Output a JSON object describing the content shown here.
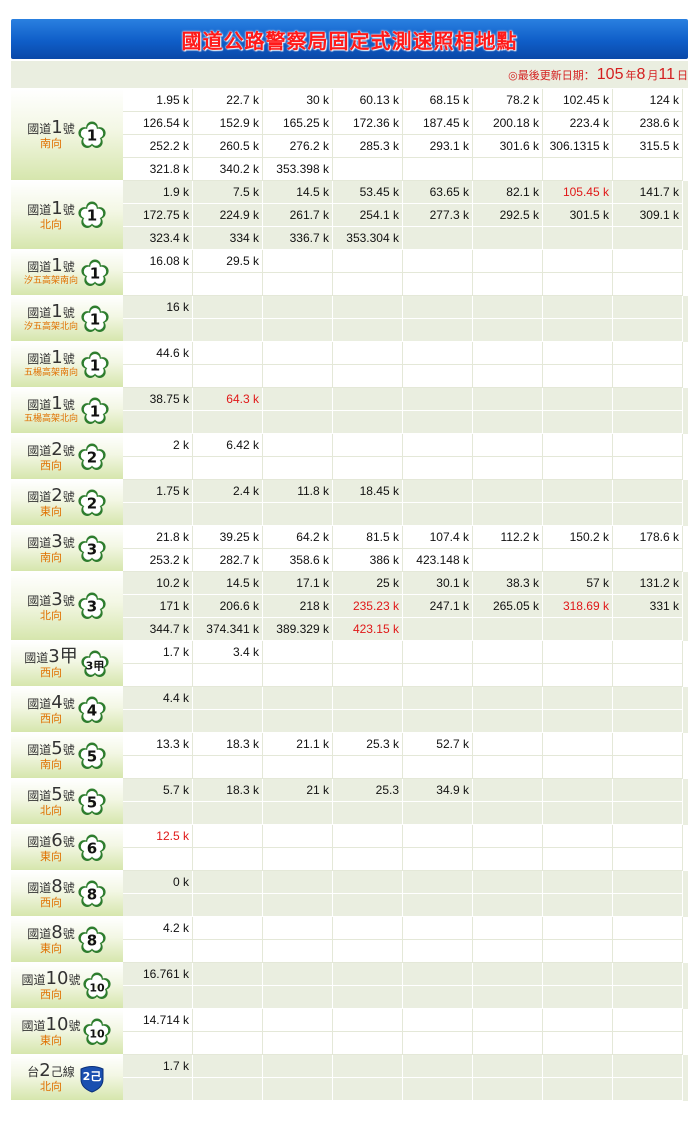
{
  "title": "國道公路警察局固定式測速照相地點",
  "update": {
    "label": "◎最後更新日期：",
    "year": "105",
    "year_unit": "年",
    "month": "8",
    "month_unit": "月",
    "day": "11",
    "day_unit": "日"
  },
  "colors": {
    "red": "#e01818",
    "orange": "#e07000",
    "title_bar": "#0f5ec8",
    "green_row": "#eaeee0"
  },
  "groups": [
    {
      "road_prefix": "國道",
      "road_num": "1",
      "road_suffix": "號",
      "dir": "南向",
      "shield": "1",
      "shield_type": "flower",
      "rows": 4,
      "values": [
        [
          "1.95 k",
          "22.7 k",
          "30 k",
          "60.13 k",
          "68.15 k",
          "78.2 k",
          "102.45 k",
          "124 k"
        ],
        [
          "126.54 k",
          "152.9 k",
          "165.25 k",
          "172.36 k",
          "187.45 k",
          "200.18 k",
          "223.4 k",
          "238.6 k"
        ],
        [
          "252.2 k",
          "260.5 k",
          "276.2 k",
          "285.3 k",
          "293.1 k",
          "301.6 k",
          "306.1315 k",
          "315.5 k"
        ],
        [
          "321.8 k",
          "340.2 k",
          "353.398 k",
          "",
          "",
          "",
          "",
          ""
        ]
      ],
      "red": []
    },
    {
      "road_prefix": "國道",
      "road_num": "1",
      "road_suffix": "號",
      "dir": "北向",
      "shield": "1",
      "shield_type": "flower",
      "rows": 3,
      "values": [
        [
          "1.9 k",
          "7.5 k",
          "14.5 k",
          "53.45 k",
          "63.65 k",
          "82.1 k",
          "105.45 k",
          "141.7 k"
        ],
        [
          "172.75 k",
          "224.9 k",
          "261.7 k",
          "254.1 k",
          "277.3 k",
          "292.5 k",
          "301.5 k",
          "309.1 k"
        ],
        [
          "323.4 k",
          "334 k",
          "336.7 k",
          "353.304 k",
          "",
          "",
          "",
          ""
        ]
      ],
      "red": [
        "0-6"
      ]
    },
    {
      "road_prefix": "國道",
      "road_num": "1",
      "road_suffix": "號",
      "dir": "汐五高架南向",
      "shield": "1",
      "shield_type": "flower",
      "rows": 2,
      "values": [
        [
          "16.08 k",
          "29.5 k",
          "",
          "",
          "",
          "",
          "",
          ""
        ],
        [
          "",
          "",
          "",
          "",
          "",
          "",
          "",
          ""
        ]
      ],
      "red": []
    },
    {
      "road_prefix": "國道",
      "road_num": "1",
      "road_suffix": "號",
      "dir": "汐五高架北向",
      "shield": "1",
      "shield_type": "flower",
      "rows": 2,
      "values": [
        [
          "16 k",
          "",
          "",
          "",
          "",
          "",
          "",
          ""
        ],
        [
          "",
          "",
          "",
          "",
          "",
          "",
          "",
          ""
        ]
      ],
      "red": []
    },
    {
      "road_prefix": "國道",
      "road_num": "1",
      "road_suffix": "號",
      "dir": "五楊高架南向",
      "shield": "1",
      "shield_type": "flower",
      "rows": 2,
      "values": [
        [
          "44.6 k",
          "",
          "",
          "",
          "",
          "",
          "",
          ""
        ],
        [
          "",
          "",
          "",
          "",
          "",
          "",
          "",
          ""
        ]
      ],
      "red": []
    },
    {
      "road_prefix": "國道",
      "road_num": "1",
      "road_suffix": "號",
      "dir": "五楊高架北向",
      "shield": "1",
      "shield_type": "flower",
      "rows": 2,
      "values": [
        [
          "38.75 k",
          "64.3 k",
          "",
          "",
          "",
          "",
          "",
          ""
        ],
        [
          "",
          "",
          "",
          "",
          "",
          "",
          "",
          ""
        ]
      ],
      "red": [
        "0-1"
      ]
    },
    {
      "road_prefix": "國道",
      "road_num": "2",
      "road_suffix": "號",
      "dir": "西向",
      "shield": "2",
      "shield_type": "flower",
      "rows": 2,
      "values": [
        [
          "2 k",
          "6.42 k",
          "",
          "",
          "",
          "",
          "",
          ""
        ],
        [
          "",
          "",
          "",
          "",
          "",
          "",
          "",
          ""
        ]
      ],
      "red": []
    },
    {
      "road_prefix": "國道",
      "road_num": "2",
      "road_suffix": "號",
      "dir": "東向",
      "shield": "2",
      "shield_type": "flower",
      "rows": 2,
      "values": [
        [
          "1.75 k",
          "2.4 k",
          "11.8 k",
          "18.45 k",
          "",
          "",
          "",
          ""
        ],
        [
          "",
          "",
          "",
          "",
          "",
          "",
          "",
          ""
        ]
      ],
      "red": []
    },
    {
      "road_prefix": "國道",
      "road_num": "3",
      "road_suffix": "號",
      "dir": "南向",
      "shield": "3",
      "shield_type": "flower",
      "rows": 2,
      "values": [
        [
          "21.8 k",
          "39.25 k",
          "64.2 k",
          "81.5 k",
          "107.4 k",
          "112.2 k",
          "150.2 k",
          "178.6 k"
        ],
        [
          "253.2 k",
          "282.7 k",
          "358.6 k",
          "386 k",
          "423.148 k",
          "",
          "",
          ""
        ]
      ],
      "red": []
    },
    {
      "road_prefix": "國道",
      "road_num": "3",
      "road_suffix": "號",
      "dir": "北向",
      "shield": "3",
      "shield_type": "flower",
      "rows": 3,
      "values": [
        [
          "10.2 k",
          "14.5 k",
          "17.1 k",
          "25 k",
          "30.1 k",
          "38.3 k",
          "57 k",
          "131.2 k"
        ],
        [
          "171 k",
          "206.6 k",
          "218 k",
          "235.23 k",
          "247.1 k",
          "265.05 k",
          "318.69 k",
          "331 k"
        ],
        [
          "344.7 k",
          "374.341 k",
          "389.329 k",
          "423.15 k",
          "",
          "",
          "",
          ""
        ]
      ],
      "red": [
        "1-3",
        "1-6",
        "2-3"
      ]
    },
    {
      "road_prefix": "國道",
      "road_num": "3甲",
      "road_suffix": "",
      "dir": "西向",
      "shield": "3甲",
      "shield_type": "flower",
      "rows": 2,
      "values": [
        [
          "1.7 k",
          "3.4 k",
          "",
          "",
          "",
          "",
          "",
          ""
        ],
        [
          "",
          "",
          "",
          "",
          "",
          "",
          "",
          ""
        ]
      ],
      "red": []
    },
    {
      "road_prefix": "國道",
      "road_num": "4",
      "road_suffix": "號",
      "dir": "西向",
      "shield": "4",
      "shield_type": "flower",
      "rows": 2,
      "values": [
        [
          "4.4 k",
          "",
          "",
          "",
          "",
          "",
          "",
          ""
        ],
        [
          "",
          "",
          "",
          "",
          "",
          "",
          "",
          ""
        ]
      ],
      "red": []
    },
    {
      "road_prefix": "國道",
      "road_num": "5",
      "road_suffix": "號",
      "dir": "南向",
      "shield": "5",
      "shield_type": "flower",
      "rows": 2,
      "values": [
        [
          "13.3 k",
          "18.3 k",
          "21.1 k",
          "25.3 k",
          "52.7 k",
          "",
          "",
          ""
        ],
        [
          "",
          "",
          "",
          "",
          "",
          "",
          "",
          ""
        ]
      ],
      "red": []
    },
    {
      "road_prefix": "國道",
      "road_num": "5",
      "road_suffix": "號",
      "dir": "北向",
      "shield": "5",
      "shield_type": "flower",
      "rows": 2,
      "values": [
        [
          "5.7 k",
          "18.3 k",
          "21 k",
          "25.3",
          "34.9 k",
          "",
          "",
          ""
        ],
        [
          "",
          "",
          "",
          "",
          "",
          "",
          "",
          ""
        ]
      ],
      "red": []
    },
    {
      "road_prefix": "國道",
      "road_num": "6",
      "road_suffix": "號",
      "dir": "東向",
      "shield": "6",
      "shield_type": "flower",
      "rows": 2,
      "values": [
        [
          "12.5 k",
          "",
          "",
          "",
          "",
          "",
          "",
          ""
        ],
        [
          "",
          "",
          "",
          "",
          "",
          "",
          "",
          ""
        ]
      ],
      "red": [
        "0-0"
      ],
      "small_label": true
    },
    {
      "road_prefix": "國道",
      "road_num": "8",
      "road_suffix": "號",
      "dir": "西向",
      "shield": "8",
      "shield_type": "flower",
      "rows": 2,
      "values": [
        [
          "0 k",
          "",
          "",
          "",
          "",
          "",
          "",
          ""
        ],
        [
          "",
          "",
          "",
          "",
          "",
          "",
          "",
          ""
        ]
      ],
      "red": []
    },
    {
      "road_prefix": "國道",
      "road_num": "8",
      "road_suffix": "號",
      "dir": "東向",
      "shield": "8",
      "shield_type": "flower",
      "rows": 2,
      "values": [
        [
          "4.2 k",
          "",
          "",
          "",
          "",
          "",
          "",
          ""
        ],
        [
          "",
          "",
          "",
          "",
          "",
          "",
          "",
          ""
        ]
      ],
      "red": []
    },
    {
      "road_prefix": "國道",
      "road_num": "10",
      "road_suffix": "號",
      "dir": "西向",
      "shield": "10",
      "shield_type": "flower",
      "rows": 2,
      "values": [
        [
          "16.761 k",
          "",
          "",
          "",
          "",
          "",
          "",
          ""
        ],
        [
          "",
          "",
          "",
          "",
          "",
          "",
          "",
          ""
        ]
      ],
      "red": []
    },
    {
      "road_prefix": "國道",
      "road_num": "10",
      "road_suffix": "號",
      "dir": "東向",
      "shield": "10",
      "shield_type": "flower",
      "rows": 2,
      "values": [
        [
          "14.714 k",
          "",
          "",
          "",
          "",
          "",
          "",
          ""
        ],
        [
          "",
          "",
          "",
          "",
          "",
          "",
          "",
          ""
        ]
      ],
      "red": []
    },
    {
      "road_prefix": "台",
      "road_num": "2",
      "road_suffix": "己線",
      "dir": "北向",
      "shield": "2己",
      "shield_type": "blue",
      "rows": 2,
      "values": [
        [
          "1.7 k",
          "",
          "",
          "",
          "",
          "",
          "",
          ""
        ],
        [
          "",
          "",
          "",
          "",
          "",
          "",
          "",
          ""
        ]
      ],
      "red": []
    }
  ]
}
